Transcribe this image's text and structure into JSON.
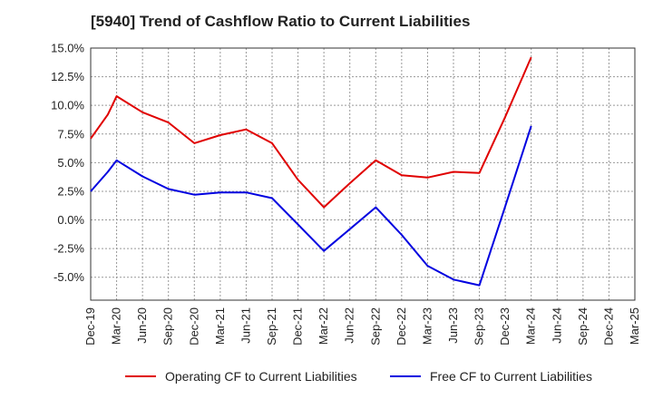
{
  "title": "[5940]  Trend of Cashflow Ratio to Current Liabilities",
  "chart_data": {
    "type": "line",
    "title": "[5940]  Trend of Cashflow Ratio to Current Liabilities",
    "xlabel": "",
    "ylabel": "",
    "categories": [
      "Dec-19",
      "Mar-20",
      "Jun-20",
      "Sep-20",
      "Dec-20",
      "Mar-21",
      "Jun-21",
      "Sep-21",
      "Dec-21",
      "Mar-22",
      "Jun-22",
      "Sep-22",
      "Dec-22",
      "Mar-23",
      "Jun-23",
      "Sep-23",
      "Dec-23",
      "Mar-24",
      "Jun-24",
      "Sep-24",
      "Dec-24",
      "Mar-25"
    ],
    "yticks": [
      "15.0%",
      "12.5%",
      "10.0%",
      "7.5%",
      "5.0%",
      "2.5%",
      "0.0%",
      "-2.5%",
      "-5.0%"
    ],
    "ylim": [
      -7.0,
      15.0
    ],
    "grid": true,
    "legend_position": "bottom",
    "series": [
      {
        "name": "Operating CF to Current Liabilities",
        "color": "#e00000",
        "x": [
          0,
          0.66,
          1,
          2,
          3,
          4,
          5,
          6,
          7,
          8,
          9,
          10,
          11,
          12,
          13,
          14,
          15,
          16,
          17
        ],
        "values": [
          7.1,
          9.2,
          10.8,
          9.4,
          8.5,
          6.7,
          7.4,
          7.9,
          6.7,
          3.5,
          1.1,
          3.2,
          5.2,
          3.9,
          3.7,
          4.2,
          4.1,
          9.0,
          14.2
        ]
      },
      {
        "name": "Free CF to Current Liabilities",
        "color": "#0000e0",
        "x": [
          0,
          0.66,
          1,
          2,
          3,
          4,
          5,
          6,
          7,
          8,
          9,
          10,
          11,
          12,
          13,
          14,
          15,
          16,
          17
        ],
        "values": [
          2.5,
          4.2,
          5.2,
          3.8,
          2.7,
          2.2,
          2.4,
          2.4,
          1.9,
          -0.4,
          -2.7,
          -0.8,
          1.1,
          -1.3,
          -4.0,
          -5.2,
          -5.7,
          1.2,
          8.2
        ]
      }
    ]
  }
}
